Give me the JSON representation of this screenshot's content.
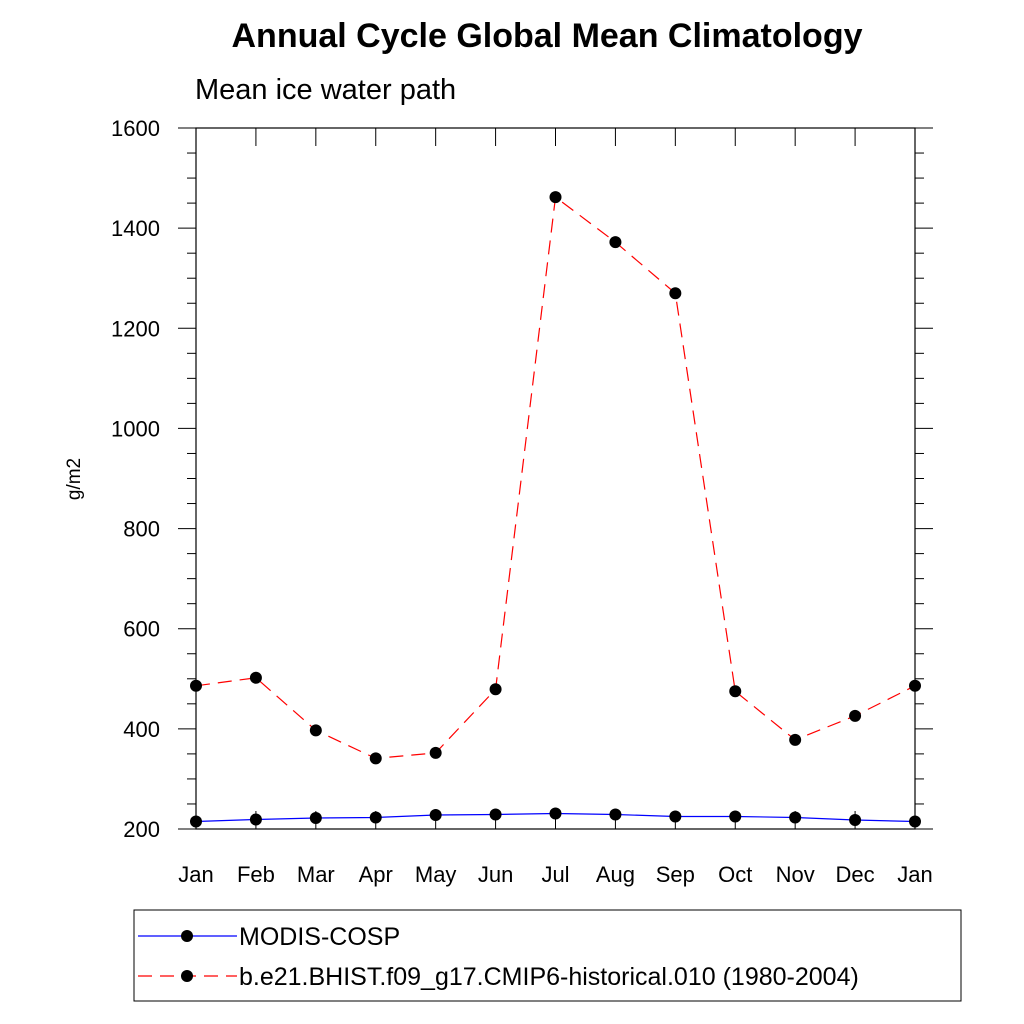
{
  "chart_data": {
    "type": "line",
    "title": "Annual Cycle Global Mean Climatology",
    "subtitle": "Mean ice water path",
    "xlabel": "",
    "ylabel": "g/m2",
    "categories": [
      "Jan",
      "Feb",
      "Mar",
      "Apr",
      "May",
      "Jun",
      "Jul",
      "Aug",
      "Sep",
      "Oct",
      "Nov",
      "Dec",
      "Jan"
    ],
    "ylim": [
      200,
      1600
    ],
    "yticks": [
      200,
      400,
      600,
      800,
      1000,
      1200,
      1400,
      1600
    ],
    "grid": false,
    "legend_position": "bottom",
    "series": [
      {
        "name": "MODIS-COSP",
        "color": "#0000ff",
        "line_style": "solid",
        "marker": "filled-circle",
        "values": [
          215,
          219,
          222,
          223,
          228,
          229,
          231,
          229,
          225,
          225,
          223,
          218,
          215
        ]
      },
      {
        "name": "b.e21.BHIST.f09_g17.CMIP6-historical.010 (1980-2004)",
        "color": "#ff0000",
        "line_style": "dashed",
        "marker": "filled-circle",
        "values": [
          486,
          502,
          397,
          341,
          352,
          479,
          1462,
          1372,
          1270,
          475,
          378,
          426,
          486
        ]
      }
    ]
  }
}
